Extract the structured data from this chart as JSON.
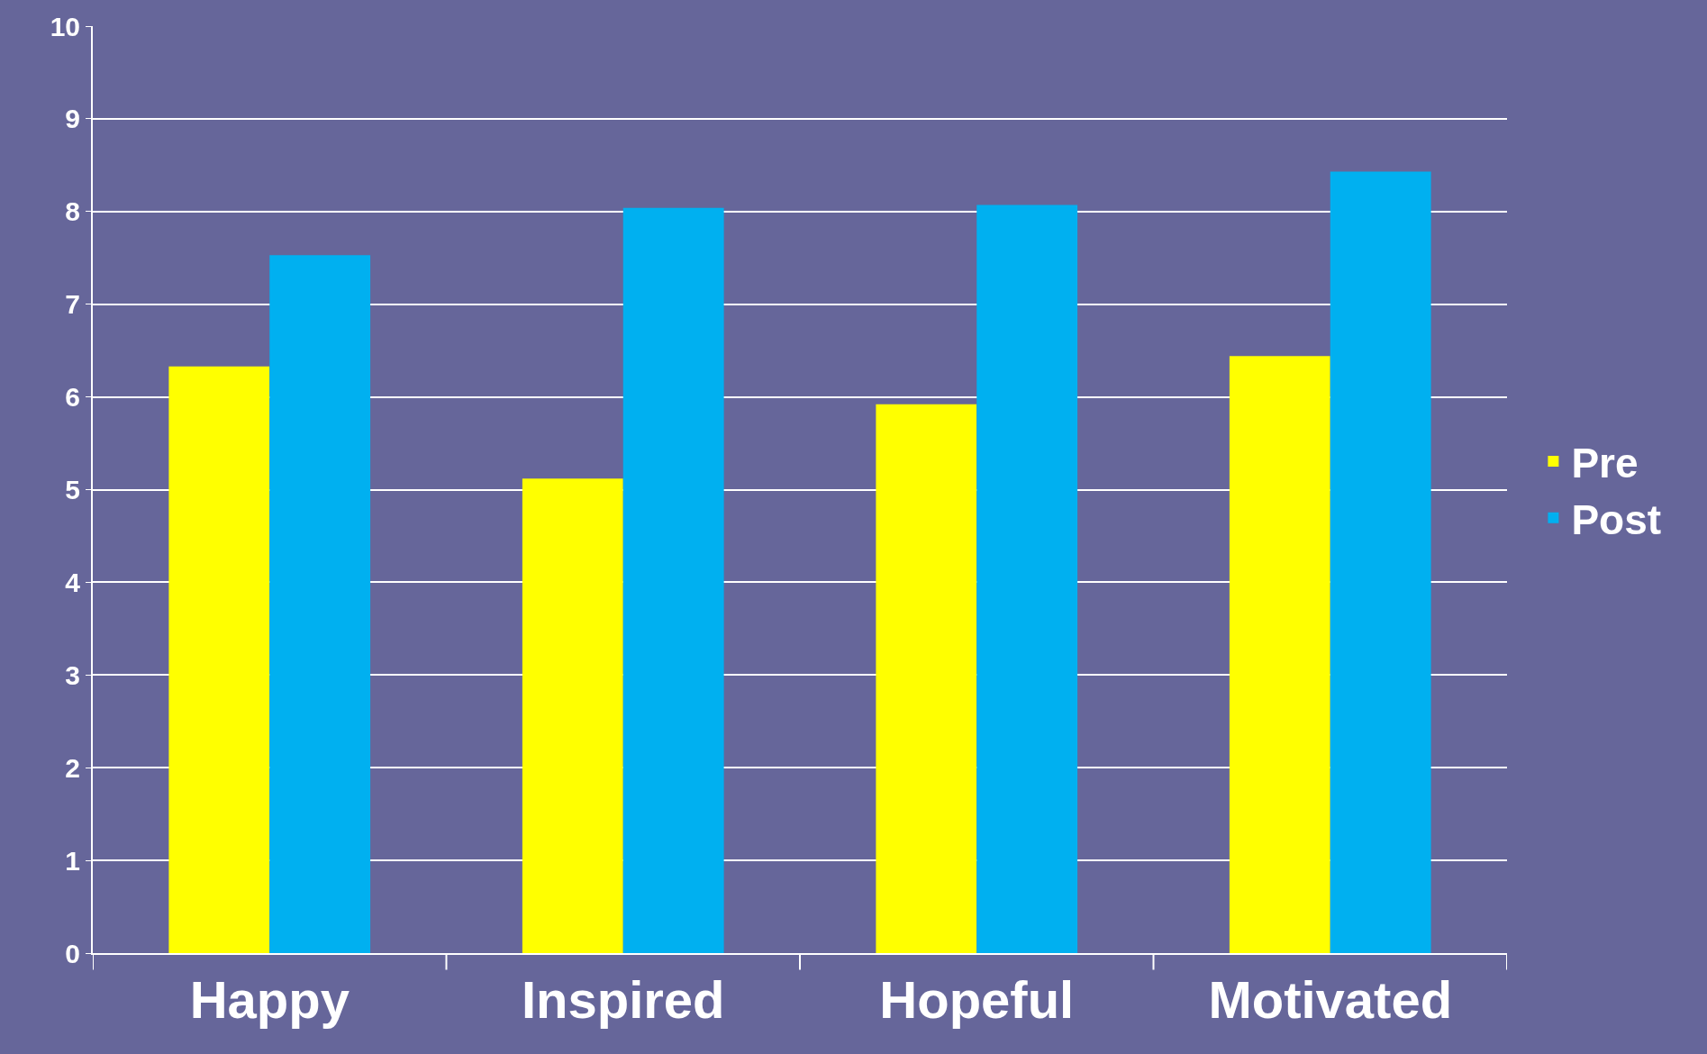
{
  "chart_data": {
    "type": "bar",
    "categories": [
      "Happy",
      "Inspired",
      "Hopeful",
      "Motivated"
    ],
    "series": [
      {
        "name": "Pre",
        "color": "#ffff00",
        "values": [
          6.33,
          5.12,
          5.92,
          6.44
        ]
      },
      {
        "name": "Post",
        "color": "#00b0f0",
        "values": [
          7.53,
          8.04,
          8.07,
          8.43
        ]
      }
    ],
    "ylim": [
      0,
      10
    ],
    "yticks": [
      0,
      1,
      2,
      3,
      4,
      5,
      6,
      7,
      8,
      9,
      10
    ],
    "grid": "y",
    "legend": "right"
  }
}
